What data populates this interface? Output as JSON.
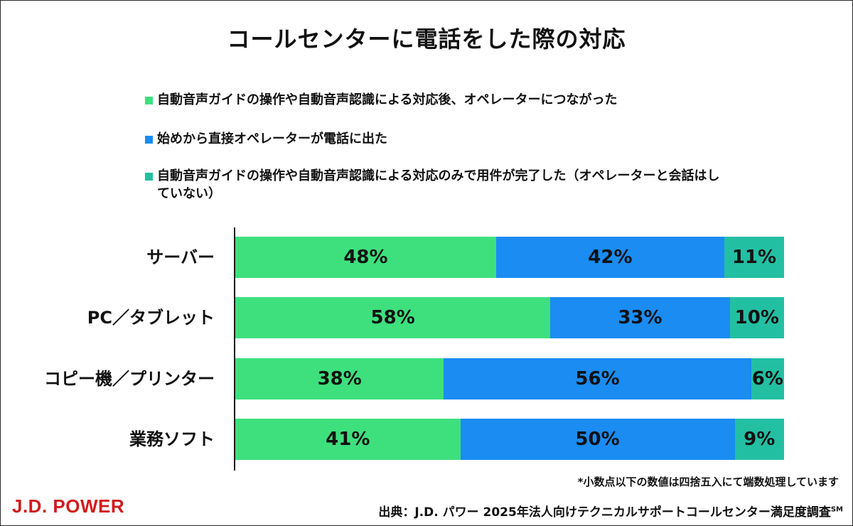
{
  "title": "コールセンターに電話をした際の対応",
  "colors": {
    "green": "#3de07d",
    "blue": "#1a8cf2",
    "teal": "#23bfa3"
  },
  "chart_data": {
    "type": "bar",
    "orientation": "horizontal",
    "stacked": true,
    "categories": [
      "サーバー",
      "PC／タブレット",
      "コピー機／プリンター",
      "業務ソフト"
    ],
    "series": [
      {
        "name": "自動音声ガイドの操作や自動音声認識による対応後、オペレーターにつながった",
        "color": "#3de07d",
        "values": [
          48,
          58,
          38,
          41
        ],
        "labels": [
          "48%",
          "58%",
          "38%",
          "41%"
        ]
      },
      {
        "name": "始めから直接オペレーターが電話に出た",
        "color": "#1a8cf2",
        "values": [
          42,
          33,
          56,
          50
        ],
        "labels": [
          "42%",
          "33%",
          "56%",
          "50%"
        ]
      },
      {
        "name": "自動音声ガイドの操作や自動音声認識による対応のみで用件が完了した（オペレーターと会話はしていない）",
        "color": "#23bfa3",
        "values": [
          11,
          10,
          6,
          9
        ],
        "labels": [
          "11%",
          "10%",
          "6%",
          "9%"
        ]
      }
    ],
    "xlim": [
      0,
      100
    ],
    "legend_position": "top"
  },
  "footnote": "*小数点以下の数値は四捨五入にて端数処理しています",
  "logo": "J.D. POWER",
  "source": "出典：J.D. パワー 2025年法人向けテクニカルサポートコールセンター満足度調査",
  "source_mark": "SM"
}
